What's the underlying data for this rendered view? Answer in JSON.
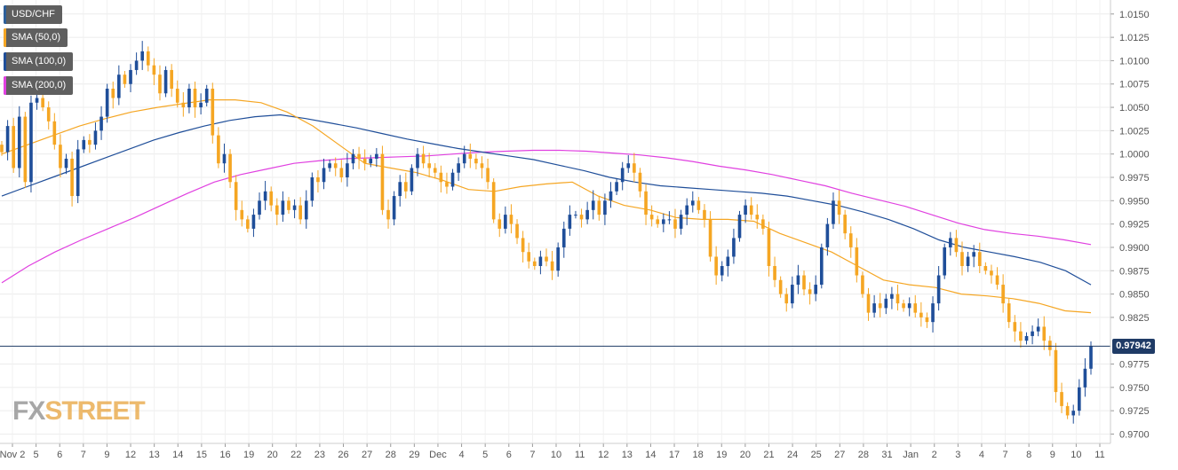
{
  "chart_data": {
    "type": "candlestick",
    "symbol": "USD/CHF",
    "legend": [
      {
        "label": "USD/CHF",
        "color": "#2d5f9a"
      },
      {
        "label": "SMA (50,0)",
        "color": "#f5a623"
      },
      {
        "label": "SMA (100,0)",
        "color": "#1f4e99"
      },
      {
        "label": "SMA (200,0)",
        "color": "#e040e0"
      }
    ],
    "current_price": "0.97942",
    "ylim": [
      0.969,
      1.0165
    ],
    "y_ticks": [
      "1.0150",
      "1.0125",
      "1.0100",
      "1.0075",
      "1.0050",
      "1.0025",
      "1.0000",
      "0.9975",
      "0.9950",
      "0.9925",
      "0.9900",
      "0.9875",
      "0.9850",
      "0.9825",
      "0.9775",
      "0.9750",
      "0.9725",
      "0.9700"
    ],
    "x_tick_labels": [
      "Nov 2",
      "5",
      "6",
      "7",
      "9",
      "12",
      "13",
      "14",
      "15",
      "16",
      "19",
      "20",
      "22",
      "23",
      "26",
      "27",
      "28",
      "29",
      "Dec",
      "4",
      "5",
      "6",
      "7",
      "10",
      "11",
      "12",
      "13",
      "14",
      "17",
      "18",
      "19",
      "20",
      "21",
      "24",
      "25",
      "27",
      "28",
      "31",
      "Jan",
      "2",
      "3",
      "4",
      "7",
      "8",
      "9",
      "10",
      "11"
    ],
    "grid": true,
    "legend_position": "top-left",
    "bull_color": "#1f4e99",
    "bear_color": "#f5a623",
    "price_closes": [
      1.0002,
      1.003,
      0.9985,
      1.004,
      0.997,
      1.0055,
      1.006,
      1.005,
      1.0035,
      1.001,
      0.9985,
      0.9995,
      0.9955,
      1.0005,
      1.0015,
      1.001,
      1.0025,
      1.004,
      1.007,
      1.006,
      1.0085,
      1.0075,
      1.009,
      1.01,
      1.011,
      1.0095,
      1.0085,
      1.0065,
      1.009,
      1.007,
      1.0055,
      1.005,
      1.007,
      1.005,
      1.0055,
      1.007,
      1.002,
      0.999,
      1.0,
      0.997,
      0.994,
      0.993,
      0.992,
      0.9935,
      0.995,
      0.996,
      0.9945,
      0.9935,
      0.995,
      0.994,
      0.9945,
      0.993,
      0.995,
      0.9975,
      0.997,
      0.9985,
      0.999,
      0.9985,
      0.9975,
      0.999,
      1.0,
      0.9995,
      0.999,
      0.9995,
      1.0,
      0.994,
      0.993,
      0.9955,
      0.997,
      0.996,
      0.9985,
      1.0,
      0.999,
      0.9985,
      0.998,
      0.997,
      0.9965,
      0.998,
      0.999,
      1.0,
      0.9995,
      0.999,
      0.9985,
      0.997,
      0.993,
      0.992,
      0.9935,
      0.9925,
      0.991,
      0.9895,
      0.9885,
      0.988,
      0.989,
      0.9885,
      0.9875,
      0.99,
      0.992,
      0.9935,
      0.9935,
      0.993,
      0.994,
      0.995,
      0.9935,
      0.995,
      0.996,
      0.997,
      0.9985,
      0.999,
      0.998,
      0.996,
      0.9935,
      0.993,
      0.9925,
      0.993,
      0.993,
      0.992,
      0.9935,
      0.9945,
      0.995,
      0.994,
      0.993,
      0.989,
      0.987,
      0.988,
      0.989,
      0.991,
      0.9935,
      0.9945,
      0.9935,
      0.993,
      0.992,
      0.988,
      0.9865,
      0.985,
      0.984,
      0.986,
      0.987,
      0.9855,
      0.985,
      0.986,
      0.99,
      0.9925,
      0.995,
      0.9935,
      0.9915,
      0.99,
      0.987,
      0.985,
      0.983,
      0.984,
      0.9835,
      0.9845,
      0.985,
      0.984,
      0.9835,
      0.984,
      0.983,
      0.9825,
      0.982,
      0.984,
      0.987,
      0.99,
      0.991,
      0.9895,
      0.988,
      0.989,
      0.9895,
      0.988,
      0.9875,
      0.987,
      0.986,
      0.984,
      0.982,
      0.981,
      0.98,
      0.9805,
      0.981,
      0.9815,
      0.98,
      0.979,
      0.9745,
      0.973,
      0.972,
      0.9725,
      0.975,
      0.977,
      0.9794
    ],
    "sma_50": [
      1.0,
      1.001,
      1.002,
      1.003,
      1.0038,
      1.0045,
      1.005,
      1.0054,
      1.0058,
      1.0058,
      1.0055,
      1.0045,
      1.003,
      1.001,
      0.999,
      0.9985,
      0.998,
      0.9972,
      0.9962,
      0.996,
      0.9965,
      0.9968,
      0.997,
      0.9955,
      0.9945,
      0.994,
      0.9932,
      0.993,
      0.993,
      0.9928,
      0.9915,
      0.9905,
      0.9895,
      0.988,
      0.9865,
      0.986,
      0.9857,
      0.985,
      0.9848,
      0.9845,
      0.984,
      0.9832,
      0.983
    ],
    "sma_100": [
      0.9955,
      0.9965,
      0.9975,
      0.9985,
      0.9995,
      1.0005,
      1.0015,
      1.0023,
      1.003,
      1.0036,
      1.004,
      1.0042,
      1.0038,
      1.0033,
      1.0028,
      1.0022,
      1.0016,
      1.0011,
      1.0006,
      1.0002,
      0.9998,
      0.9994,
      0.9988,
      0.9982,
      0.9975,
      0.997,
      0.9966,
      0.9964,
      0.9962,
      0.996,
      0.9958,
      0.9955,
      0.995,
      0.9945,
      0.9938,
      0.993,
      0.992,
      0.9908,
      0.99,
      0.9895,
      0.989,
      0.9884,
      0.9875,
      0.986
    ],
    "sma_200": [
      0.9862,
      0.988,
      0.9895,
      0.9908,
      0.992,
      0.9932,
      0.9945,
      0.9958,
      0.997,
      0.9978,
      0.9984,
      0.999,
      0.9993,
      0.9995,
      0.9996,
      0.9997,
      0.9998,
      1.0,
      1.0002,
      1.0003,
      1.0004,
      1.0004,
      1.0003,
      1.0001,
      0.9999,
      0.9996,
      0.9992,
      0.9987,
      0.9983,
      0.9978,
      0.9972,
      0.9966,
      0.9958,
      0.9951,
      0.9944,
      0.9935,
      0.9926,
      0.9919,
      0.9915,
      0.9912,
      0.9908,
      0.9903
    ]
  },
  "branding": {
    "fx": "FX",
    "street": "STREET"
  }
}
